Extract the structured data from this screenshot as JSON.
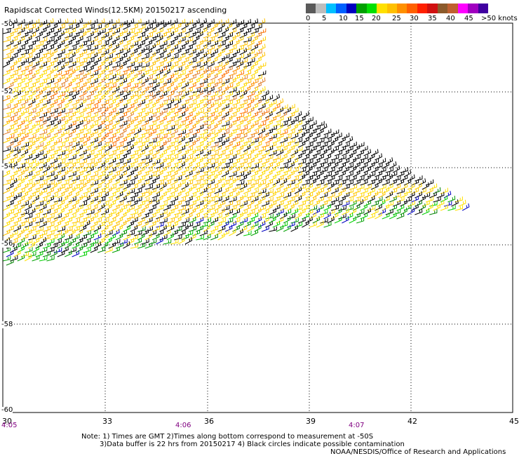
{
  "title": "Rapidscat Corrected Winds(12.5KM) 20150217 ascending",
  "legend": {
    "labels": [
      "0",
      "5",
      "10",
      "15",
      "20",
      "25",
      "30",
      "35",
      "40",
      "45",
      ">50 knots"
    ],
    "colors": [
      "#5a5a5a",
      "#bdbdbd",
      "#00c0ff",
      "#0060ff",
      "#0000c0",
      "#00a000",
      "#00e000",
      "#ffe000",
      "#ffc000",
      "#ff9000",
      "#ff6000",
      "#ff2000",
      "#d01010",
      "#8b5a2b",
      "#c06030",
      "#ff00ff",
      "#a000c0",
      "#4000a0"
    ]
  },
  "map": {
    "lat_labels": [
      "-50",
      "-52",
      "-54",
      "-56",
      "-58",
      "-60"
    ],
    "lon_labels": [
      "30",
      "33",
      "36",
      "39",
      "42",
      "45"
    ],
    "time_labels": [
      "4:05",
      "4:06",
      "4:07"
    ]
  },
  "notes": {
    "line1": "Note: 1) Times are GMT 2)Times along bottom correspond to measurement at -50S",
    "line2": "3)Data buffer is 22 hrs from 20150217 4) Black circles indicate possible contamination",
    "credit": "NOAA/NESDIS/Office of Research and Applications"
  }
}
